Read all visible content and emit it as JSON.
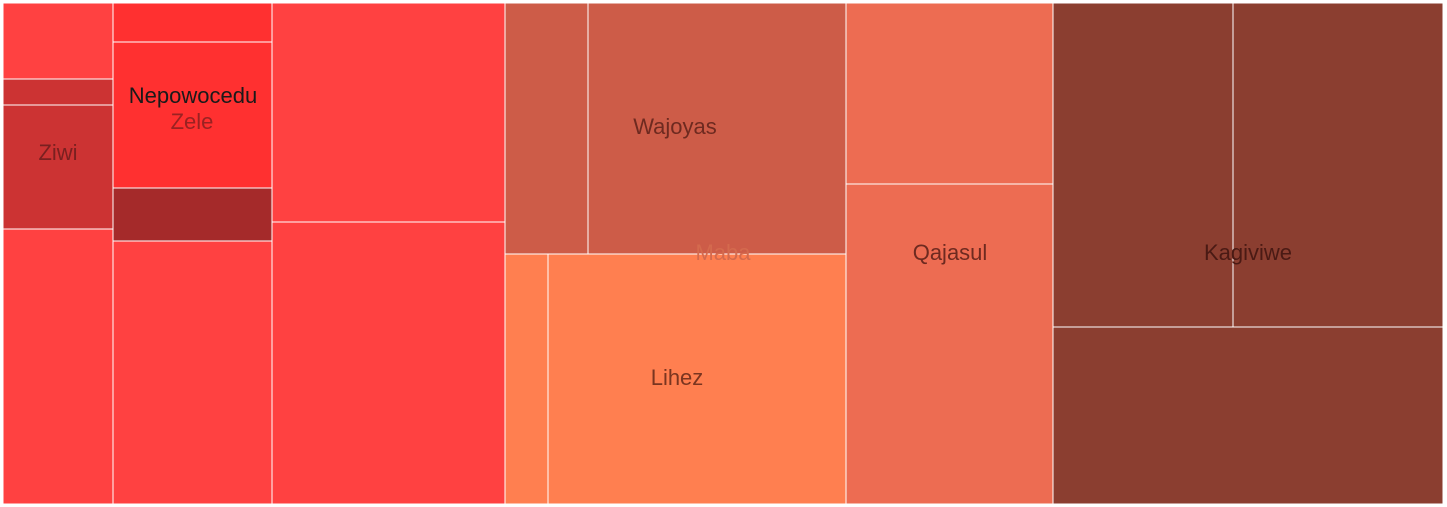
{
  "chart_data": {
    "type": "treemap",
    "title": "",
    "groups": [
      {
        "name": "Nepowocedu",
        "color": "#ff4141",
        "children": [
          {
            "name": "",
            "color": "#ff4141"
          },
          {
            "name": "",
            "color": "#cc3333"
          },
          {
            "name": "Ziwi",
            "color": "#cc3333"
          },
          {
            "name": "",
            "color": "#ff4141"
          },
          {
            "name": "",
            "color": "#ff3030"
          },
          {
            "name": "Zele",
            "color": "#ff3030"
          },
          {
            "name": "",
            "color": "#a52a2a"
          },
          {
            "name": "",
            "color": "#ff4141"
          },
          {
            "name": "",
            "color": "#ff4141"
          },
          {
            "name": "",
            "color": "#ff4141"
          }
        ]
      },
      {
        "name": "Maba",
        "color": "#cd5c48",
        "children": [
          {
            "name": "",
            "color": "#cd5c48"
          },
          {
            "name": "Wajoyas",
            "color": "#cd5c48"
          },
          {
            "name": "",
            "color": "#ff7f50"
          },
          {
            "name": "Lihez",
            "color": "#ff7f50"
          }
        ]
      },
      {
        "name": "Qajasul",
        "color": "#ed6c52",
        "children": [
          {
            "name": "",
            "color": "#ed6c52"
          },
          {
            "name": "",
            "color": "#ed6c52"
          }
        ]
      },
      {
        "name": "Kagiviwe",
        "color": "#8b3e30",
        "children": [
          {
            "name": "",
            "color": "#8b3e30"
          },
          {
            "name": "",
            "color": "#8b3e30"
          },
          {
            "name": "",
            "color": "#8b3e30"
          }
        ]
      }
    ]
  }
}
